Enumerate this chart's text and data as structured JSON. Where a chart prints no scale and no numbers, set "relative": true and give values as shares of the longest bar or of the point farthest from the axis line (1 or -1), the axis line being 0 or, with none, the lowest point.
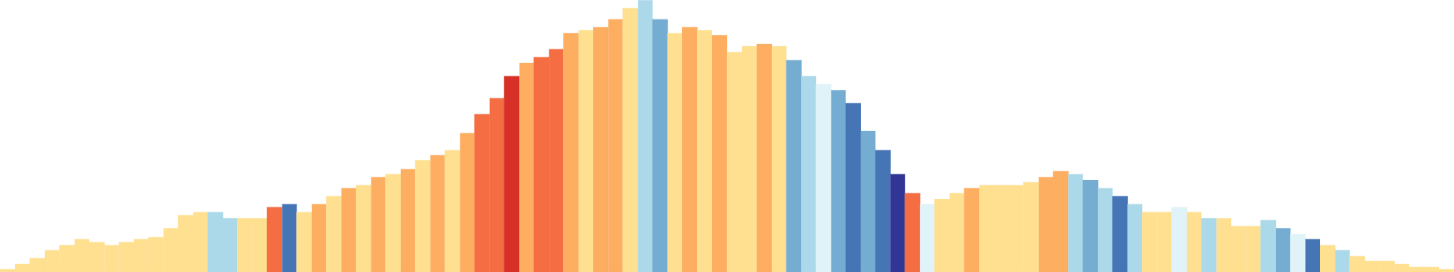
{
  "chart_data": {
    "type": "bar",
    "relative": true,
    "categories": [
      null,
      null,
      null,
      null,
      null,
      null,
      null,
      null,
      null,
      null,
      null,
      null,
      null,
      null,
      null,
      null,
      null,
      null,
      null,
      null,
      null,
      null,
      null,
      null,
      null,
      null,
      null,
      null,
      null,
      null,
      null,
      null,
      null,
      null,
      null,
      null,
      null,
      null,
      null,
      null,
      null,
      null,
      null,
      null,
      null,
      null,
      null,
      null,
      null,
      null,
      null,
      null,
      null,
      null,
      null,
      null,
      null,
      null,
      null,
      null,
      null,
      null,
      null,
      null,
      null,
      null,
      null,
      null,
      null,
      null,
      null,
      null,
      null,
      null,
      null,
      null,
      null,
      null,
      null,
      null,
      null,
      null,
      null,
      null,
      null,
      null,
      null,
      null,
      null,
      null,
      null,
      null,
      null,
      null,
      null,
      null,
      null,
      null
    ],
    "values": [
      0.01,
      0.03,
      0.05,
      0.08,
      0.1,
      0.12,
      0.11,
      0.1,
      0.11,
      0.12,
      0.13,
      0.16,
      0.21,
      0.22,
      0.22,
      0.2,
      0.2,
      0.2,
      0.24,
      0.25,
      0.22,
      0.25,
      0.28,
      0.31,
      0.32,
      0.35,
      0.36,
      0.38,
      0.41,
      0.43,
      0.45,
      0.51,
      0.58,
      0.64,
      0.72,
      0.77,
      0.79,
      0.82,
      0.88,
      0.89,
      0.9,
      0.93,
      0.97,
      1,
      0.93,
      0.88,
      0.9,
      0.89,
      0.87,
      0.81,
      0.83,
      0.84,
      0.83,
      0.78,
      0.72,
      0.69,
      0.67,
      0.62,
      0.52,
      0.45,
      0.36,
      0.29,
      0.25,
      0.27,
      0.29,
      0.31,
      0.32,
      0.32,
      0.32,
      0.33,
      0.35,
      0.37,
      0.36,
      0.34,
      0.31,
      0.28,
      0.25,
      0.22,
      0.22,
      0.24,
      0.22,
      0.2,
      0.2,
      0.17,
      0.17,
      0.19,
      0.16,
      0.14,
      0.12,
      0.1,
      0.08,
      0.06,
      0.04,
      0.04,
      0.03,
      0.02,
      0.02,
      0.01
    ],
    "colors": [
      "#fee090",
      "#fee090",
      "#fee090",
      "#fee090",
      "#fee090",
      "#fee090",
      "#fee090",
      "#fee090",
      "#fee090",
      "#fee090",
      "#fee090",
      "#fee090",
      "#fee090",
      "#fee090",
      "#abd9e9",
      "#abd9e9",
      "#fee090",
      "#fee090",
      "#f46d43",
      "#4575b4",
      "#fee090",
      "#fdae61",
      "#fee090",
      "#fdae61",
      "#fee090",
      "#fdae61",
      "#fee090",
      "#fdae61",
      "#fee090",
      "#fdae61",
      "#fee090",
      "#fdae61",
      "#f46d43",
      "#f46d43",
      "#d73027",
      "#fdae61",
      "#f46d43",
      "#f46d43",
      "#fdae61",
      "#fee090",
      "#fdae61",
      "#fdae61",
      "#fee090",
      "#abd9e9",
      "#74add1",
      "#fee090",
      "#fdae61",
      "#fee090",
      "#fdae61",
      "#fee090",
      "#fee090",
      "#fdae61",
      "#fee090",
      "#74add1",
      "#abd9e9",
      "#e0f3f8",
      "#74add1",
      "#4575b4",
      "#74add1",
      "#4575b4",
      "#313695",
      "#f46d43",
      "#e0f3f8",
      "#fee090",
      "#fee090",
      "#fdae61",
      "#fee090",
      "#fee090",
      "#fee090",
      "#fee090",
      "#fdae61",
      "#fdae61",
      "#abd9e9",
      "#74add1",
      "#abd9e9",
      "#4575b4",
      "#abd9e9",
      "#fee090",
      "#fee090",
      "#e0f3f8",
      "#fee090",
      "#abd9e9",
      "#fee090",
      "#fee090",
      "#fee090",
      "#abd9e9",
      "#74add1",
      "#e0f3f8",
      "#4575b4",
      "#fee090",
      "#abd9e9",
      "#fee090",
      "#fee090",
      "#fee090",
      "#fee090",
      "#fee090",
      "#fee090",
      "#fee090"
    ]
  }
}
